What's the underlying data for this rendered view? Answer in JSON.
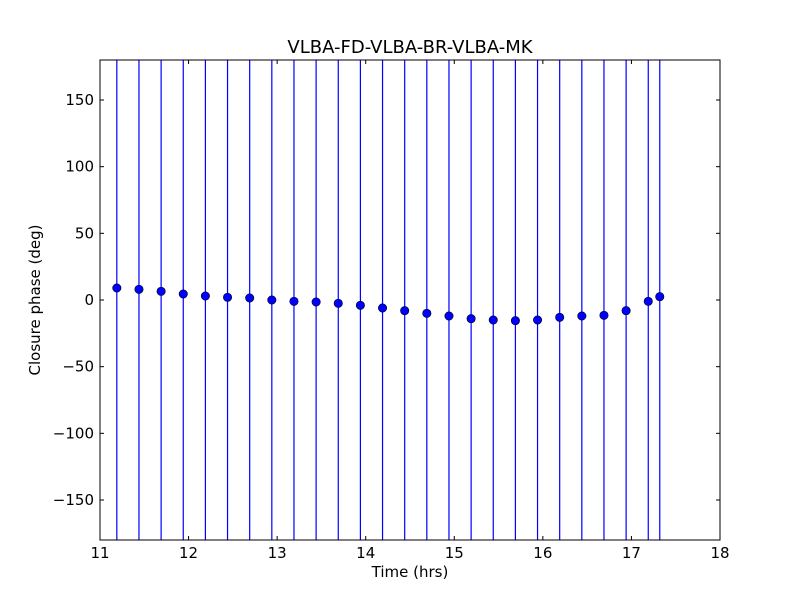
{
  "chart_data": {
    "type": "scatter",
    "title": "VLBA-FD-VLBA-BR-VLBA-MK",
    "xlabel": "Time (hrs)",
    "ylabel": "Closure phase (deg)",
    "xlim": [
      11,
      18
    ],
    "ylim": [
      -180,
      180
    ],
    "xticks": [
      11,
      12,
      13,
      14,
      15,
      16,
      17,
      18
    ],
    "xtick_labels": [
      "11",
      "12",
      "13",
      "14",
      "15",
      "16",
      "17",
      "18"
    ],
    "yticks": [
      -150,
      -100,
      -50,
      0,
      50,
      100,
      150
    ],
    "ytick_labels": [
      "−150",
      "−100",
      "−50",
      "0",
      "50",
      "100",
      "150"
    ],
    "grid": false,
    "marker_color": "#0000ff",
    "errorbar_color": "#0000ff",
    "series": [
      {
        "x": [
          11.19,
          11.44,
          11.69,
          11.94,
          12.19,
          12.44,
          12.69,
          12.94,
          13.19,
          13.44,
          13.69,
          13.94,
          14.19,
          14.44,
          14.69,
          14.94,
          15.19,
          15.44,
          15.69,
          15.94,
          16.19,
          16.44,
          16.69,
          16.94,
          17.19,
          17.32
        ],
        "y": [
          9,
          8,
          6.5,
          4.5,
          3,
          2,
          1.5,
          0,
          -1,
          -1.5,
          -2.5,
          -4,
          -6,
          -8,
          -10,
          -12,
          -14,
          -15,
          -15.5,
          -15,
          -13,
          -12,
          -11.5,
          -8,
          -1,
          2.5
        ],
        "yerr_low": [
          -180,
          -180,
          -180,
          -180,
          -180,
          -180,
          -180,
          -180,
          -180,
          -180,
          -180,
          -180,
          -180,
          -180,
          -180,
          -180,
          -180,
          -180,
          -180,
          -180,
          -180,
          -180,
          -180,
          -180,
          -180,
          -180
        ],
        "yerr_high": [
          180,
          180,
          180,
          180,
          180,
          180,
          180,
          180,
          180,
          180,
          180,
          180,
          180,
          180,
          180,
          180,
          180,
          180,
          180,
          180,
          180,
          180,
          180,
          180,
          180,
          180
        ]
      }
    ]
  }
}
